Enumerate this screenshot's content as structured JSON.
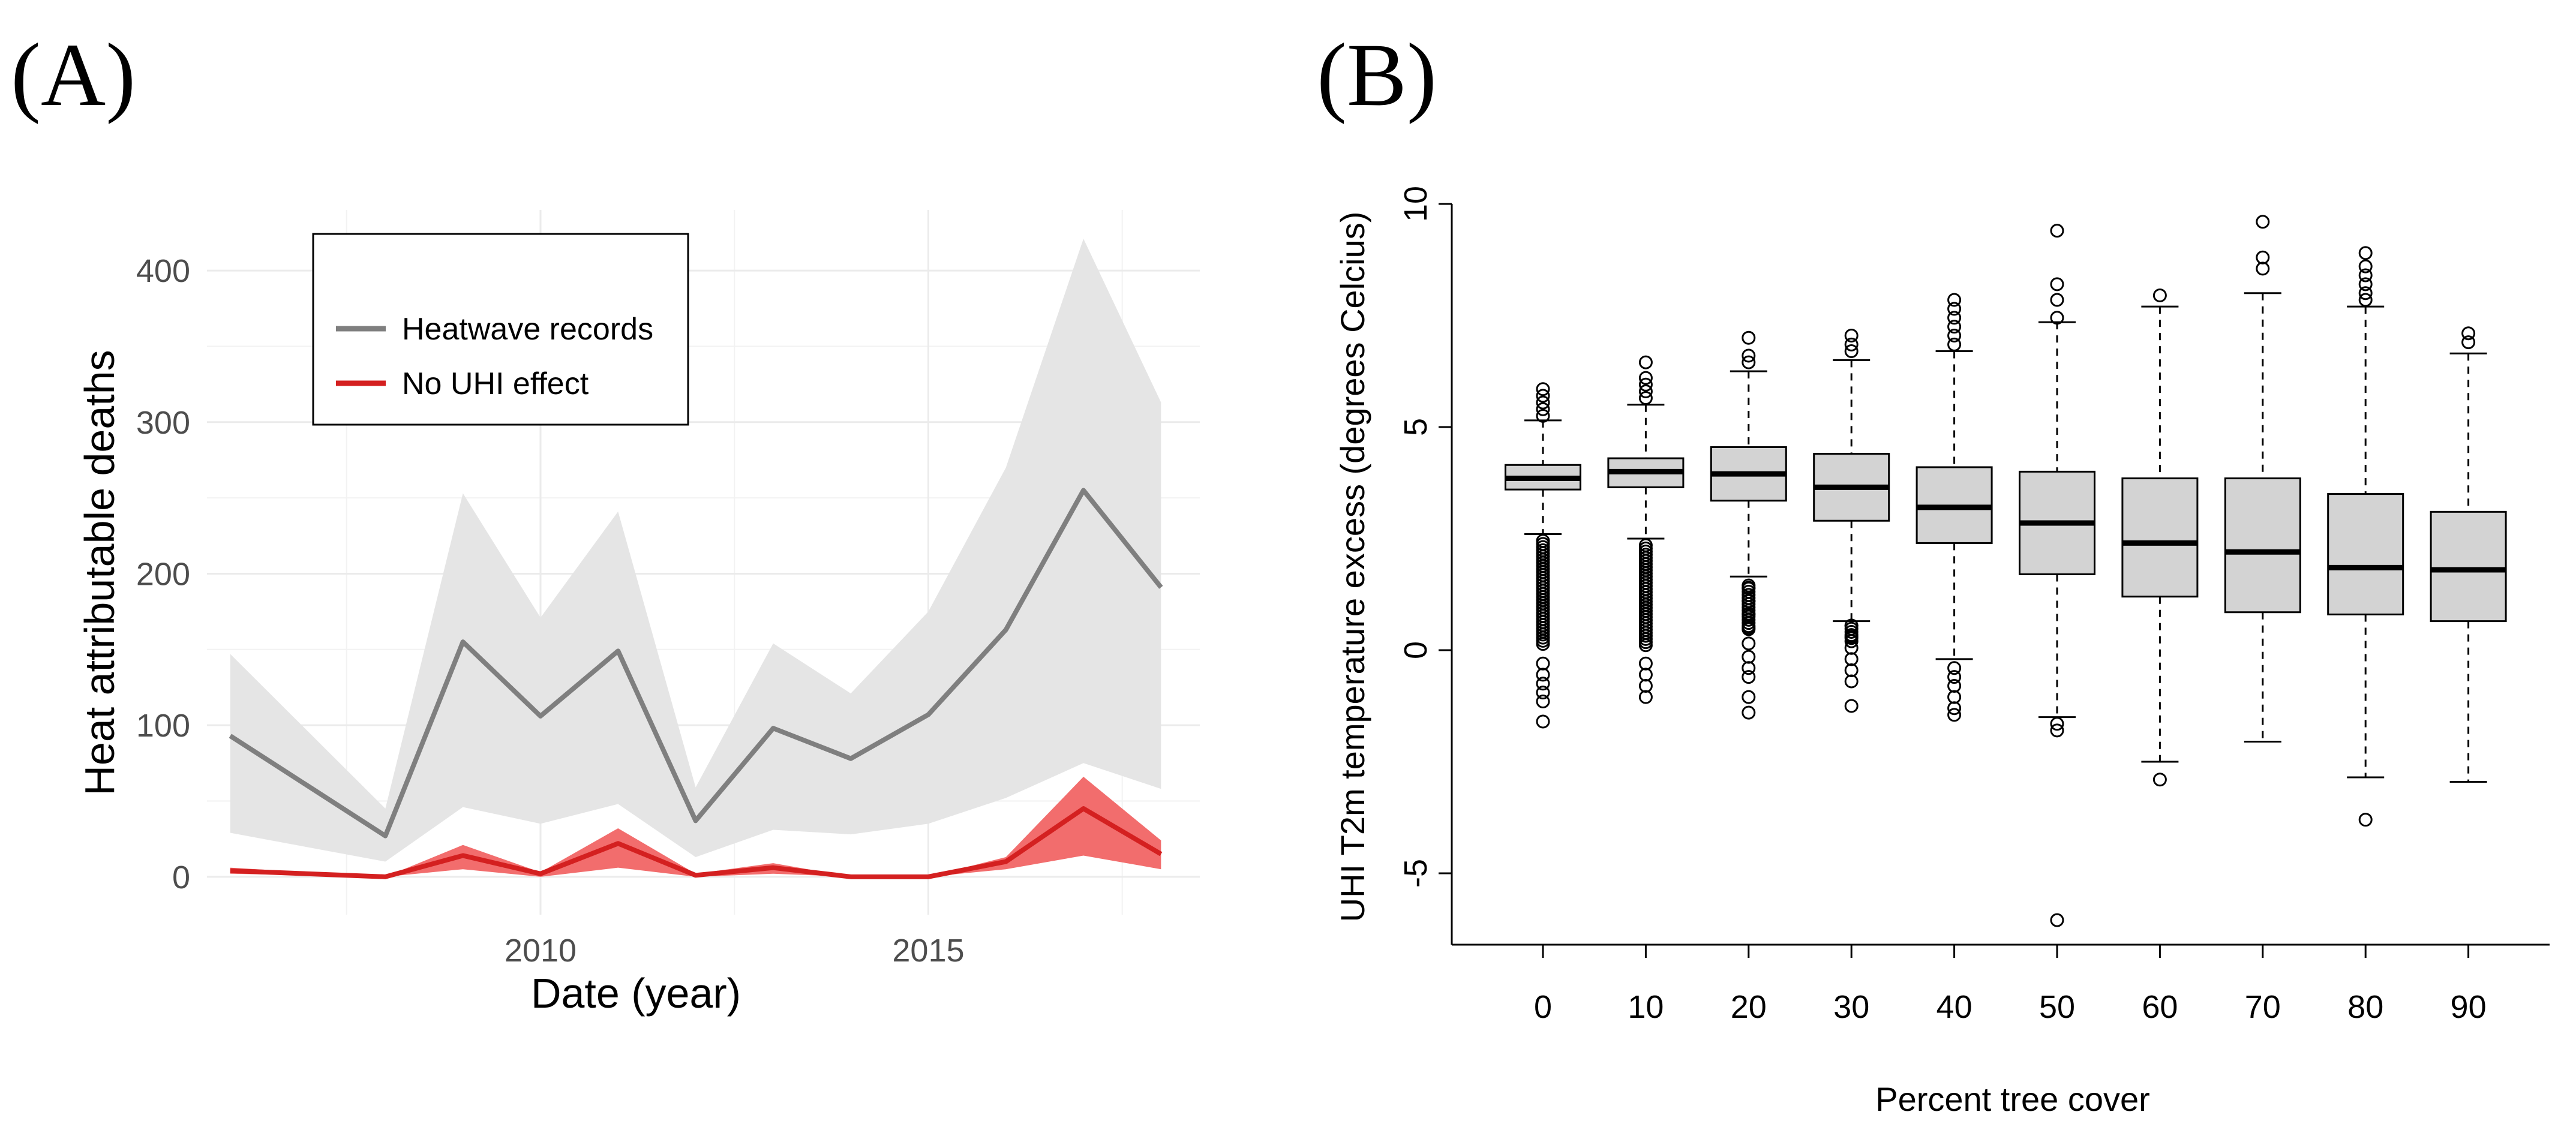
{
  "chart_data": [
    {
      "panel": "(A)",
      "type": "line",
      "title": "",
      "xlabel": "Date (year)",
      "ylabel": "Heat attributable deaths",
      "xlim": [
        2005.7,
        2018.5
      ],
      "ylim": [
        -25,
        440
      ],
      "xticks": [
        2010,
        2015
      ],
      "yticks": [
        0,
        100,
        200,
        300,
        400
      ],
      "grid": true,
      "legend_position": "top-left",
      "x": [
        2006,
        2008,
        2009,
        2010,
        2011,
        2012,
        2013,
        2014,
        2015,
        2016,
        2017,
        2018
      ],
      "series": [
        {
          "name": "Heatwave records",
          "color": "#7f7f7f",
          "band_color": "#e5e5e5",
          "values": [
            93,
            27,
            155,
            106,
            149,
            37,
            98,
            78,
            107,
            163,
            255,
            191
          ],
          "lower": [
            29,
            10,
            46,
            35,
            48,
            13,
            31,
            28,
            35,
            52,
            75,
            58
          ],
          "upper": [
            147,
            45,
            253,
            171,
            241,
            59,
            154,
            121,
            175,
            270,
            421,
            313
          ]
        },
        {
          "name": "No UHI effect",
          "color": "#d42020",
          "band_color": "#f26d6d",
          "values": [
            4,
            0,
            14,
            2,
            22,
            1,
            6,
            0,
            0,
            10,
            45,
            15
          ],
          "lower": [
            2,
            0,
            5,
            0,
            6,
            0,
            2,
            0,
            0,
            5,
            14,
            5
          ],
          "upper": [
            6,
            0,
            21,
            3,
            32,
            2,
            9,
            0,
            0,
            13,
            66,
            24
          ]
        }
      ]
    },
    {
      "panel": "(B)",
      "type": "boxplot",
      "title": "",
      "xlabel": "Percent tree cover",
      "ylabel": "UHI T2m temperature excess (degrees Celcius)",
      "ylim": [
        -6.6,
        10
      ],
      "yticks": [
        -5,
        0,
        5,
        10
      ],
      "categories": [
        "0",
        "10",
        "20",
        "30",
        "40",
        "50",
        "60",
        "70",
        "80",
        "90"
      ],
      "boxes": [
        {
          "q1": 3.6,
          "median": 3.85,
          "q3": 4.15,
          "whisker_low": 2.6,
          "whisker_high": 5.15
        },
        {
          "q1": 3.65,
          "median": 4.0,
          "q3": 4.3,
          "whisker_low": 2.5,
          "whisker_high": 5.5
        },
        {
          "q1": 3.35,
          "median": 3.95,
          "q3": 4.55,
          "whisker_low": 1.65,
          "whisker_high": 6.25
        },
        {
          "q1": 2.9,
          "median": 3.65,
          "q3": 4.4,
          "whisker_low": 0.65,
          "whisker_high": 6.5
        },
        {
          "q1": 2.4,
          "median": 3.2,
          "q3": 4.1,
          "whisker_low": -0.2,
          "whisker_high": 6.7
        },
        {
          "q1": 1.7,
          "median": 2.85,
          "q3": 4.0,
          "whisker_low": -1.5,
          "whisker_high": 7.35
        },
        {
          "q1": 1.2,
          "median": 2.4,
          "q3": 3.85,
          "whisker_low": -2.5,
          "whisker_high": 7.7
        },
        {
          "q1": 0.85,
          "median": 2.2,
          "q3": 3.85,
          "whisker_low": -2.05,
          "whisker_high": 8.0
        },
        {
          "q1": 0.8,
          "median": 1.85,
          "q3": 3.5,
          "whisker_low": -2.85,
          "whisker_high": 7.7
        },
        {
          "q1": 0.65,
          "median": 1.8,
          "q3": 3.1,
          "whisker_low": -2.95,
          "whisker_high": 6.65
        }
      ],
      "outliers": [
        {
          "category": 0,
          "values": [
            5.25,
            5.4,
            5.55,
            5.7,
            5.85,
            -0.3,
            -0.55,
            -0.75,
            -0.95,
            -1.15,
            -1.6
          ]
        },
        {
          "category": 1,
          "values": [
            5.65,
            5.8,
            5.95,
            6.1,
            6.45,
            -0.3,
            -0.55,
            -0.8,
            -1.05
          ]
        },
        {
          "category": 2,
          "values": [
            6.45,
            6.6,
            7.0,
            1.4,
            1.1,
            0.8,
            0.5,
            0.15,
            -0.15,
            -0.4,
            -0.6,
            -1.05,
            -1.4
          ]
        },
        {
          "category": 3,
          "values": [
            6.7,
            6.85,
            7.05,
            0.55,
            0.3,
            0.05,
            -0.2,
            -0.45,
            -0.7,
            -1.25
          ]
        },
        {
          "category": 4,
          "values": [
            6.85,
            7.05,
            7.25,
            7.45,
            7.65,
            7.85,
            -0.4,
            -0.6,
            -0.8,
            -1.05,
            -1.3,
            -1.45
          ]
        },
        {
          "category": 5,
          "values": [
            7.45,
            7.85,
            8.2,
            9.4,
            -1.65,
            -1.8,
            -6.05
          ]
        },
        {
          "category": 6,
          "values": [
            7.95,
            -2.9
          ]
        },
        {
          "category": 7,
          "values": [
            8.55,
            8.8,
            9.6
          ]
        },
        {
          "category": 8,
          "values": [
            7.85,
            8.0,
            8.2,
            8.4,
            8.6,
            8.9,
            -3.8
          ]
        },
        {
          "category": 9,
          "values": [
            6.9,
            7.1
          ]
        }
      ]
    }
  ]
}
